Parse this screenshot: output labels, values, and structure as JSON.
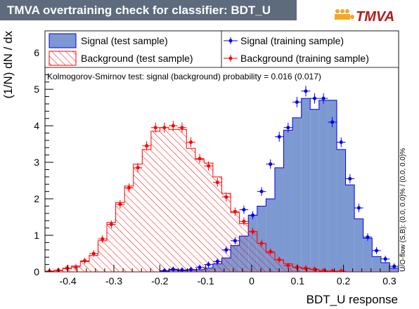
{
  "title": "TMVA overtraining check for classifier: BDT_U",
  "logo": {
    "text": "TMVA"
  },
  "colors": {
    "title_bar": "#5d6b7d",
    "signal_fill": "#7d99d1",
    "signal_line": "#0000ee",
    "background_hatch": "#ff0000",
    "signal_points": "#0000ee",
    "background_points": "#ff0000"
  },
  "annotations": {
    "ks_test": "Kolmogorov-Smirnov test: signal (background) probability = 0.016 (0.017)",
    "overflow": "U/O-flow (S,B): (0.0, 0.0)% / (0.0, 0.0)%"
  },
  "chart_data": {
    "type": "bar",
    "xlabel": "BDT_U response",
    "ylabel": "(1/N) dN / dx",
    "xlim": [
      -0.45,
      0.32
    ],
    "ylim": [
      0,
      6.6
    ],
    "xticks": [
      -0.4,
      -0.3,
      -0.2,
      -0.1,
      0,
      0.1,
      0.2,
      0.3
    ],
    "xtick_labels": [
      "-0.4",
      "-0.3",
      "-0.2",
      "-0.1",
      "0",
      "0.1",
      "0.2",
      "0.3"
    ],
    "yticks": [
      0,
      1,
      2,
      3,
      4,
      5,
      6
    ],
    "ytick_labels": [
      "0",
      "1",
      "2",
      "3",
      "4",
      "5",
      "6"
    ],
    "bin_width": 0.01925,
    "x": [
      -0.4404,
      -0.4211,
      -0.4019,
      -0.3826,
      -0.3634,
      -0.3441,
      -0.3249,
      -0.3056,
      -0.2864,
      -0.2671,
      -0.2479,
      -0.2286,
      -0.2094,
      -0.1901,
      -0.1709,
      -0.1516,
      -0.1324,
      -0.1131,
      -0.0939,
      -0.0746,
      -0.0554,
      -0.0361,
      -0.0169,
      0.0024,
      0.0216,
      0.0409,
      0.0601,
      0.0794,
      0.0986,
      0.1179,
      0.1371,
      0.1564,
      0.1756,
      0.1949,
      0.2141,
      0.2334,
      0.2526,
      0.2719,
      0.2911,
      0.3104
    ],
    "legend": [
      {
        "label": "Signal (test sample)",
        "style": "filled"
      },
      {
        "label": "Background (test sample)",
        "style": "hatched"
      },
      {
        "label": "Signal (training sample)",
        "style": "point-blue"
      },
      {
        "label": "Background (training sample)",
        "style": "point-red"
      }
    ],
    "series": [
      {
        "name": "Signal (test sample)",
        "values": [
          0,
          0,
          0,
          0,
          0,
          0,
          0,
          0,
          0,
          0,
          0,
          0,
          0,
          0.02,
          0.05,
          0.03,
          0.05,
          0.06,
          0.1,
          0.22,
          0.38,
          0.72,
          0.98,
          1.55,
          1.8,
          2.0,
          2.85,
          3.88,
          4.22,
          4.75,
          4.45,
          4.7,
          4.7,
          3.35,
          2.38,
          1.45,
          0.92,
          0.42,
          0.25,
          0.1
        ]
      },
      {
        "name": "Background (test sample)",
        "values": [
          0.02,
          0.03,
          0.08,
          0.16,
          0.28,
          0.45,
          0.85,
          1.35,
          1.9,
          2.35,
          2.95,
          3.35,
          3.85,
          3.95,
          3.9,
          3.9,
          3.38,
          3.08,
          2.98,
          2.6,
          2.15,
          1.62,
          1.32,
          1.1,
          0.78,
          0.52,
          0.33,
          0.22,
          0.13,
          0.08,
          0.06,
          0.02,
          0.01,
          0.01,
          0,
          0,
          0,
          0,
          0,
          0
        ]
      },
      {
        "name": "Signal (training sample)",
        "values": [
          null,
          null,
          null,
          null,
          null,
          null,
          null,
          null,
          null,
          null,
          null,
          null,
          null,
          0.03,
          0.07,
          0.05,
          0.06,
          0.12,
          0.2,
          0.28,
          0.6,
          0.85,
          1.7,
          1.55,
          2.2,
          2.95,
          3.7,
          3.95,
          4.65,
          4.95,
          4.75,
          4.75,
          4.1,
          3.55,
          2.55,
          1.75,
          0.95,
          0.58,
          0.35,
          0.15
        ]
      },
      {
        "name": "Background (training sample)",
        "values": [
          0.02,
          0.04,
          0.1,
          0.13,
          0.3,
          0.5,
          0.9,
          1.3,
          1.85,
          2.3,
          2.85,
          3.45,
          3.95,
          3.95,
          4.0,
          3.95,
          3.55,
          3.1,
          2.9,
          2.45,
          2.05,
          1.65,
          1.38,
          1.1,
          0.78,
          0.55,
          0.33,
          0.17,
          0.12,
          0.1,
          0.07,
          0.03,
          0.02,
          0.02,
          null,
          null,
          null,
          null,
          null,
          null
        ]
      }
    ]
  }
}
